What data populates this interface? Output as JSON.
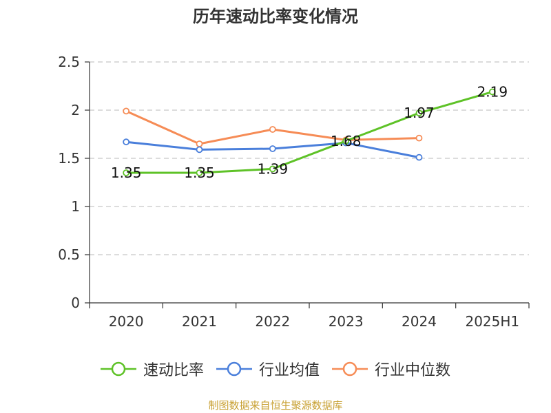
{
  "chart_data": {
    "type": "line",
    "title": "历年速动比率变化情况",
    "categories": [
      "2020",
      "2021",
      "2022",
      "2023",
      "2024",
      "2025H1"
    ],
    "ylim": [
      0,
      2.5
    ],
    "yticks": [
      "0",
      "0.5",
      "1",
      "1.5",
      "2",
      "2.5"
    ],
    "grid": true,
    "legend_position": "bottom",
    "series": [
      {
        "name": "速动比率",
        "color": "#5ec227",
        "values": [
          1.35,
          1.35,
          1.39,
          1.68,
          1.97,
          2.19
        ],
        "labels": [
          "1.35",
          "1.35",
          "1.39",
          "1.68",
          "1.97",
          "2.19"
        ]
      },
      {
        "name": "行业均值",
        "color": "#4a7fdb",
        "values": [
          1.67,
          1.59,
          1.6,
          1.66,
          1.51,
          null
        ]
      },
      {
        "name": "行业中位数",
        "color": "#f68c56",
        "values": [
          1.99,
          1.65,
          1.8,
          1.69,
          1.71,
          null
        ]
      }
    ]
  },
  "footer": {
    "source": "制图数据来自恒生聚源数据库"
  }
}
